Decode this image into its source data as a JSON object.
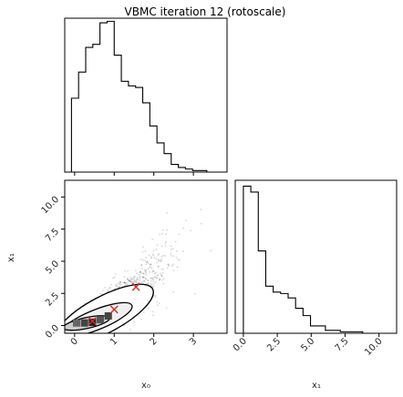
{
  "chart_data": {
    "type": "corner",
    "title": "VBMC iteration 12 (rotoscale)",
    "variables": [
      "x₀",
      "x₁"
    ],
    "panels": [
      {
        "name": "hist-x0",
        "type": "histogram",
        "xlim": [
          -0.25,
          3.85
        ],
        "bin_edges": [
          -0.08,
          0.1,
          0.28,
          0.46,
          0.64,
          0.82,
          1.0,
          1.18,
          1.36,
          1.54,
          1.72,
          1.9,
          2.08,
          2.26,
          2.44,
          2.62,
          2.8,
          2.98,
          3.16,
          3.34,
          3.52
        ],
        "values": [
          0.48,
          0.65,
          0.81,
          0.83,
          0.97,
          0.98,
          0.76,
          0.59,
          0.56,
          0.55,
          0.45,
          0.3,
          0.19,
          0.12,
          0.05,
          0.03,
          0.02,
          0.01,
          0.01,
          0.0
        ],
        "ylim": [
          0,
          1.0
        ]
      },
      {
        "name": "scatter-x0-x1",
        "type": "scatter-with-contours",
        "xlim": [
          -0.25,
          3.85
        ],
        "ylim": [
          -0.6,
          11.3
        ],
        "x_ticks": [
          "0",
          "1",
          "2",
          "3"
        ],
        "y_ticks": [
          "0.0",
          "2.5",
          "5.0",
          "7.5",
          "10.0"
        ],
        "x_tick_values": [
          0,
          1,
          2,
          3
        ],
        "y_tick_values": [
          0,
          2.5,
          5,
          7.5,
          10
        ],
        "xlabel": "x₀",
        "ylabel": "x₁",
        "ridge": [
          [
            0.0,
            0.0
          ],
          [
            0.5,
            0.5
          ],
          [
            1.0,
            1.3
          ],
          [
            1.5,
            2.6
          ],
          [
            2.0,
            4.0
          ],
          [
            2.5,
            5.4
          ],
          [
            3.0,
            6.6
          ]
        ],
        "markers": [
          [
            1.55,
            3.0
          ],
          [
            1.0,
            1.25
          ],
          [
            0.45,
            0.35
          ]
        ],
        "marker_color": "#d62728"
      },
      {
        "name": "hist-x1",
        "type": "histogram",
        "xlim": [
          -0.6,
          11.3
        ],
        "bin_edges": [
          0.0,
          0.55,
          1.1,
          1.65,
          2.2,
          2.75,
          3.3,
          3.85,
          4.4,
          4.95,
          5.5,
          6.05,
          6.6,
          7.15,
          7.7,
          8.25,
          8.8,
          9.35
        ],
        "values": [
          1.0,
          0.96,
          0.56,
          0.32,
          0.28,
          0.27,
          0.24,
          0.17,
          0.12,
          0.05,
          0.05,
          0.02,
          0.02,
          0.01,
          0.01,
          0.01,
          0.0
        ],
        "ylim": [
          0,
          1.04
        ],
        "x_ticks": [
          "0.0",
          "2.5",
          "5.0",
          "7.5",
          "10.0"
        ],
        "x_tick_values": [
          0,
          2.5,
          5,
          7.5,
          10
        ],
        "xlabel": "x₁"
      }
    ]
  }
}
